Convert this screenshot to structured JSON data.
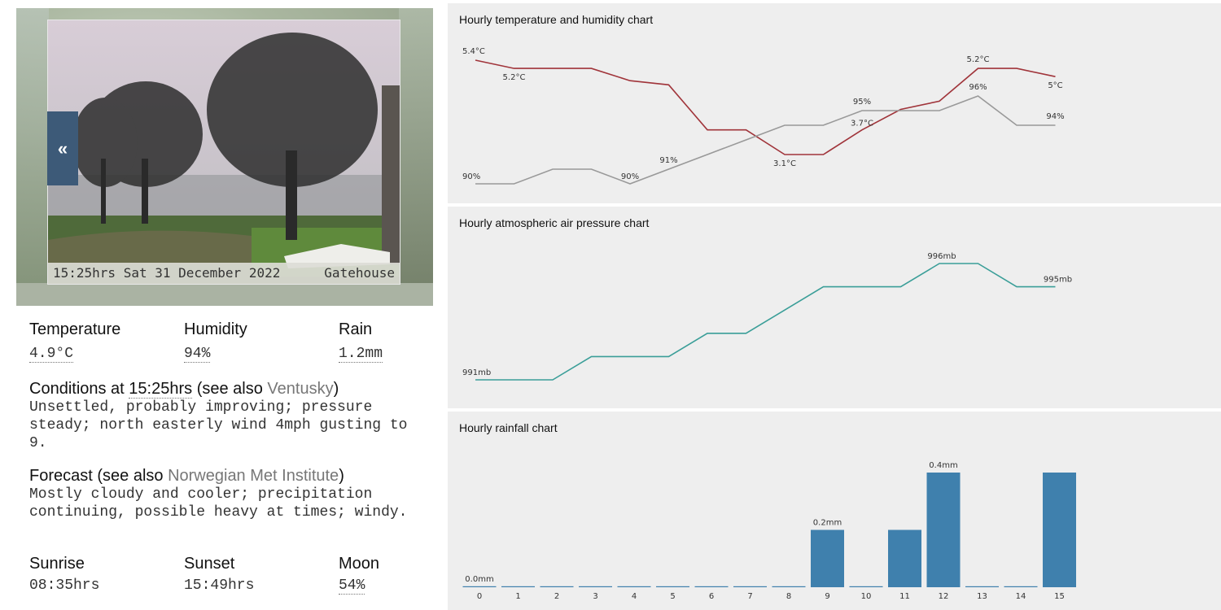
{
  "webcam": {
    "timestamp": "15:25hrs Sat 31 December 2022",
    "location": "Gatehouse",
    "prev_label": "«"
  },
  "current": {
    "temperature_label": "Temperature",
    "temperature_value": "4.9°C",
    "humidity_label": "Humidity",
    "humidity_value": "94%",
    "rain_label": "Rain",
    "rain_value": "1.2mm"
  },
  "conditions": {
    "prefix": "Conditions at ",
    "time": "15:25hrs",
    "see_also": " (see also ",
    "link": "Ventusky",
    "suffix": ")",
    "text": "Unsettled, probably improving; pressure steady; north easterly wind 4mph gusting to 9."
  },
  "forecast": {
    "prefix": "Forecast (see also ",
    "link": "Norwegian Met Institute",
    "suffix": ")",
    "text": "Mostly cloudy and cooler; precipitation continuing, possible heavy at times; windy."
  },
  "sun_moon": {
    "sunrise_label": "Sunrise",
    "sunrise_value": "08:35hrs",
    "sunset_label": "Sunset",
    "sunset_value": "15:49hrs",
    "moon_label": "Moon",
    "moon_value": "54%"
  },
  "colors": {
    "temperature": "#a0343a",
    "humidity": "#999999",
    "pressure": "#3a9e98",
    "rain": "#3f80ad"
  },
  "chart_data": [
    {
      "type": "line",
      "title": "Hourly temperature and humidity chart",
      "x": [
        0,
        1,
        2,
        3,
        4,
        5,
        6,
        7,
        8,
        9,
        10,
        11,
        12,
        13,
        14,
        15
      ],
      "series": [
        {
          "name": "",
          "unit": "°C",
          "values": [
            5.4,
            5.2,
            5.2,
            5.2,
            4.9,
            4.8,
            3.7,
            3.7,
            3.1,
            3.1,
            3.7,
            4.2,
            4.4,
            5.2,
            5.2,
            5.0
          ],
          "labels": {
            "0": "5.4°C",
            "1": "5.2°C",
            "8": "3.1°C",
            "10": "3.7°C",
            "13": "5.2°C",
            "15": "5°C"
          }
        },
        {
          "name": "",
          "unit": "%",
          "values": [
            90,
            90,
            91,
            91,
            90,
            91,
            92,
            93,
            94,
            94,
            95,
            95,
            95,
            96,
            94,
            94
          ],
          "labels": {
            "0": "90%",
            "4": "90%",
            "5": "91%",
            "10": "95%",
            "13": "96%",
            "15": "94%"
          }
        }
      ]
    },
    {
      "type": "line",
      "title": "Hourly atmospheric air pressure chart",
      "x": [
        0,
        1,
        2,
        3,
        4,
        5,
        6,
        7,
        8,
        9,
        10,
        11,
        12,
        13,
        14,
        15
      ],
      "series": [
        {
          "name": "",
          "unit": "mb",
          "values": [
            991,
            991,
            991,
            992,
            992,
            992,
            993,
            993,
            994,
            995,
            995,
            995,
            996,
            996,
            995,
            995
          ],
          "labels": {
            "0": "991mb",
            "12": "996mb",
            "15": "995mb"
          }
        }
      ]
    },
    {
      "type": "bar",
      "title": "Hourly rainfall chart",
      "categories": [
        "0",
        "1",
        "2",
        "3",
        "4",
        "5",
        "6",
        "7",
        "8",
        "9",
        "10",
        "11",
        "12",
        "13",
        "14",
        "15"
      ],
      "values": [
        0.0,
        0.0,
        0.0,
        0.0,
        0.0,
        0.0,
        0.0,
        0.0,
        0.0,
        0.2,
        0.0,
        0.2,
        0.4,
        0.0,
        0.0,
        0.4
      ],
      "labels": {
        "0": "0.0mm",
        "9": "0.2mm",
        "12": "0.4mm"
      }
    }
  ]
}
